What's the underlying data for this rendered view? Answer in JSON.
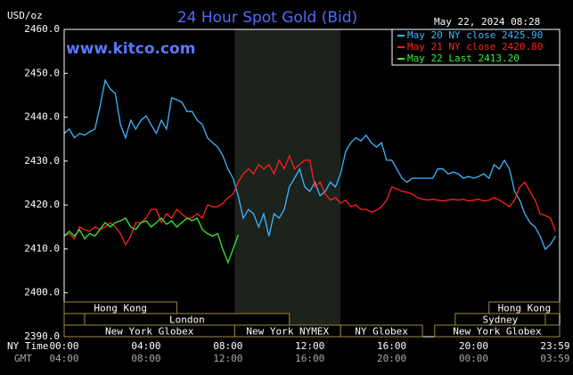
{
  "chart_data": {
    "type": "line",
    "title": "24 Hour Spot Gold (Bid)",
    "unit_label": "USD/oz",
    "timestamp": "May 22, 2024 08:28",
    "watermark": "www.kitco.com",
    "x_row_label": "NY Time",
    "x2_row_label": "GMT",
    "xlim": [
      0,
      24.2
    ],
    "ylim": [
      2390,
      2460
    ],
    "yticks": [
      {
        "value": 2390,
        "label": "2390.0"
      },
      {
        "value": 2400,
        "label": "2400.0"
      },
      {
        "value": 2410,
        "label": "2410.0"
      },
      {
        "value": 2420,
        "label": "2420.0"
      },
      {
        "value": 2430,
        "label": "2430.0"
      },
      {
        "value": 2440,
        "label": "2440.0"
      },
      {
        "value": 2450,
        "label": "2450.0"
      },
      {
        "value": 2460,
        "label": "2460.0"
      }
    ],
    "xticks": [
      {
        "value": 0,
        "label": "00:00"
      },
      {
        "value": 4,
        "label": "04:00"
      },
      {
        "value": 8,
        "label": "08:00"
      },
      {
        "value": 12,
        "label": "12:00"
      },
      {
        "value": 16,
        "label": "16:00"
      },
      {
        "value": 20,
        "label": "20:00"
      },
      {
        "value": 23.98,
        "label": "23:59"
      }
    ],
    "gmt_labels": [
      "04:00",
      "08:00",
      "12:00",
      "16:00",
      "20:00",
      "00:00",
      "03:59"
    ],
    "grid": false,
    "shade_color": "#1c221c",
    "nymex_shade": [
      8.33,
      13.5
    ],
    "session_color": "#9c8a3c",
    "sessions": [
      {
        "label": "Hong Kong",
        "row": 0,
        "start": 0,
        "end": 5.5
      },
      {
        "label": "Hong Kong",
        "row": 0,
        "start": 20.75,
        "end": 24.2
      },
      {
        "label": null,
        "row": 1,
        "start": 0,
        "end": 1
      },
      {
        "label": "London",
        "row": 1,
        "start": 1,
        "end": 11
      },
      {
        "label": "Sydney",
        "row": 1,
        "start": 19.1,
        "end": 23.5
      },
      {
        "label": "New York Globex",
        "row": 2,
        "start": 0,
        "end": 8.33
      },
      {
        "label": "New York NYMEX",
        "row": 2,
        "start": 8.33,
        "end": 13.5
      },
      {
        "label": "NY Globex",
        "row": 2,
        "start": 13.5,
        "end": 17.5
      },
      {
        "label": "New York Globex",
        "row": 2,
        "start": 18.1,
        "end": 24.2
      }
    ],
    "x": [
      0,
      0.25,
      0.5,
      0.75,
      1,
      1.25,
      1.5,
      1.75,
      2,
      2.25,
      2.5,
      2.75,
      3,
      3.25,
      3.5,
      3.75,
      4,
      4.25,
      4.5,
      4.75,
      5,
      5.25,
      5.5,
      5.75,
      6,
      6.25,
      6.5,
      6.75,
      7,
      7.25,
      7.5,
      7.75,
      8,
      8.25,
      8.5,
      8.75,
      9,
      9.25,
      9.5,
      9.75,
      10,
      10.25,
      10.5,
      10.75,
      11,
      11.25,
      11.5,
      11.75,
      12,
      12.25,
      12.5,
      12.75,
      13,
      13.25,
      13.5,
      13.75,
      14,
      14.25,
      14.5,
      14.75,
      15,
      15.25,
      15.5,
      15.75,
      16,
      16.25,
      16.5,
      16.75,
      17,
      17.25,
      17.5,
      17.75,
      18,
      18.25,
      18.5,
      18.75,
      19,
      19.25,
      19.5,
      19.75,
      20,
      20.25,
      20.5,
      20.75,
      21,
      21.25,
      21.5,
      21.75,
      22,
      22.25,
      22.5,
      22.75,
      23,
      23.25,
      23.5,
      23.75,
      24
    ],
    "series": [
      {
        "name": "May 20 NY close 2425.90",
        "color": "#3fb6ff",
        "values": [
          2436.3,
          2437.3,
          2435.3,
          2436.3,
          2435.9,
          2436.7,
          2437.3,
          2442.4,
          2448.4,
          2446.4,
          2445.4,
          2438.3,
          2435.3,
          2439.3,
          2437.3,
          2439.3,
          2440.3,
          2438.3,
          2436.3,
          2439.3,
          2437.3,
          2444.4,
          2444.0,
          2443.4,
          2441.3,
          2441.3,
          2439.3,
          2438.3,
          2435.3,
          2434.2,
          2433.2,
          2431.2,
          2428.2,
          2426.1,
          2422.1,
          2417.0,
          2419.0,
          2418.0,
          2415.0,
          2418.0,
          2412.9,
          2418.0,
          2417.0,
          2419.0,
          2424.1,
          2426.1,
          2428.2,
          2424.1,
          2423.1,
          2425.2,
          2422.1,
          2423.1,
          2425.2,
          2424.1,
          2427.1,
          2432.2,
          2434.2,
          2435.3,
          2434.6,
          2435.9,
          2434.2,
          2433.2,
          2434.2,
          2430.2,
          2430.2,
          2428.2,
          2426.1,
          2425.2,
          2426.1,
          2426.1,
          2426.1,
          2426.1,
          2426.1,
          2428.2,
          2428.2,
          2427.1,
          2427.5,
          2427.1,
          2426.1,
          2426.5,
          2426.1,
          2426.5,
          2427.1,
          2426.1,
          2429.2,
          2428.2,
          2430.2,
          2428.2,
          2423.1,
          2421.1,
          2418.0,
          2416.0,
          2415.0,
          2412.9,
          2409.9,
          2411.0,
          2412.9
        ]
      },
      {
        "name": "May 21 NY close 2420.80",
        "color": "#ff2020",
        "values": [
          2412.9,
          2413.5,
          2412.3,
          2415.0,
          2414.4,
          2414.0,
          2415.0,
          2414.4,
          2415.0,
          2416.0,
          2415.0,
          2413.5,
          2410.9,
          2412.9,
          2416.0,
          2416.0,
          2417.0,
          2419.0,
          2419.0,
          2416.0,
          2418.0,
          2417.0,
          2419.0,
          2418.0,
          2417.0,
          2417.0,
          2418.0,
          2417.0,
          2420.0,
          2419.6,
          2419.6,
          2420.4,
          2421.7,
          2422.5,
          2425.2,
          2427.1,
          2428.2,
          2427.1,
          2429.2,
          2428.2,
          2429.2,
          2427.1,
          2430.2,
          2428.2,
          2431.2,
          2428.2,
          2429.2,
          2430.2,
          2430.2,
          2424.1,
          2425.2,
          2422.5,
          2421.1,
          2421.7,
          2420.4,
          2421.1,
          2419.6,
          2420.0,
          2419.0,
          2419.0,
          2418.4,
          2418.8,
          2419.6,
          2421.1,
          2424.1,
          2423.7,
          2423.1,
          2422.9,
          2422.5,
          2421.7,
          2421.3,
          2421.1,
          2421.3,
          2421.1,
          2420.9,
          2421.1,
          2421.3,
          2421.1,
          2421.3,
          2420.9,
          2421.1,
          2421.3,
          2420.9,
          2421.1,
          2421.7,
          2421.1,
          2420.4,
          2419.6,
          2421.1,
          2424.1,
          2425.2,
          2423.1,
          2421.1,
          2418.0,
          2417.6,
          2417.0,
          2414.0
        ]
      },
      {
        "name": "May 22 Last 2413.20",
        "color": "#33ee33",
        "values": [
          2412.9,
          2414.0,
          2412.9,
          2414.4,
          2412.3,
          2413.5,
          2412.9,
          2414.4,
          2416.0,
          2415.0,
          2416.0,
          2416.4,
          2417.0,
          2415.0,
          2414.4,
          2416.0,
          2416.4,
          2415.0,
          2416.0,
          2417.0,
          2415.6,
          2416.4,
          2415.0,
          2416.0,
          2417.0,
          2416.4,
          2417.0,
          2414.4,
          2413.5,
          2412.9,
          2413.5,
          2409.9,
          2406.9,
          2409.9,
          2413.2,
          null,
          null,
          null,
          null,
          null,
          null,
          null,
          null,
          null,
          null,
          null,
          null,
          null,
          null,
          null,
          null,
          null,
          null,
          null,
          null,
          null,
          null,
          null,
          null,
          null,
          null,
          null,
          null,
          null,
          null,
          null,
          null,
          null,
          null,
          null,
          null,
          null,
          null,
          null,
          null,
          null,
          null,
          null,
          null,
          null,
          null,
          null,
          null,
          null,
          null,
          null,
          null,
          null,
          null,
          null,
          null,
          null,
          null,
          null,
          null,
          null,
          null
        ]
      }
    ]
  }
}
